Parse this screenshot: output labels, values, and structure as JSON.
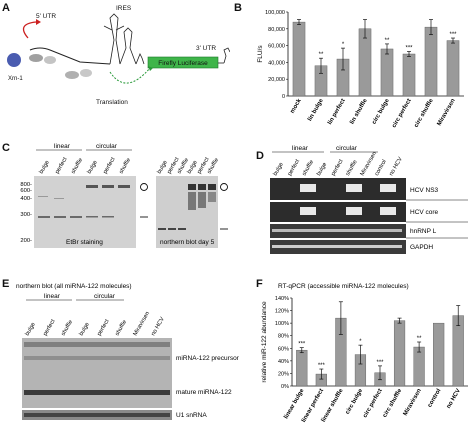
{
  "panels": {
    "A": {
      "letter": "A",
      "ires": "IRES",
      "utr5": "5' UTR",
      "utr3": "3' UTR",
      "xrn1": "Xrn-1",
      "luciferase": "Firefly Luciferase",
      "translation": "Translation"
    },
    "B": {
      "letter": "B",
      "chart_data": {
        "type": "bar",
        "categories": [
          "mock",
          "lin bulge",
          "lin perfect",
          "lin shuffle",
          "circ bulge",
          "circ perfect",
          "circ shuffle",
          "Miravirsen"
        ],
        "values": [
          88000,
          36000,
          44000,
          80000,
          56000,
          50000,
          82000,
          66000
        ],
        "errors": [
          3000,
          9000,
          13000,
          11000,
          6000,
          3000,
          9000,
          3000
        ],
        "significance": [
          "",
          "**",
          "*",
          "",
          "**",
          "***",
          "",
          "***"
        ],
        "ylabel": "FLU/s",
        "ylim": [
          0,
          100000
        ],
        "yticks": [
          "0",
          "20,000",
          "40,000",
          "60,000",
          "80,000",
          "100,000"
        ],
        "color": "#9a9a9a"
      }
    },
    "C": {
      "letter": "C",
      "linear": "linear",
      "circular": "circular",
      "lanes": [
        "bulge",
        "perfect",
        "shuffle",
        "bulge",
        "perfect",
        "shuffle"
      ],
      "lanes_right": [
        "bulge",
        "perfect",
        "shuffle",
        "bulge",
        "perfect",
        "shuffle"
      ],
      "size_markers": [
        "800-",
        "600-",
        "400-",
        "300-",
        "200-"
      ],
      "left_caption": "EtBr staining",
      "right_caption": "northern blot day 5",
      "circle_marker": "O",
      "line_marker": "–"
    },
    "D": {
      "letter": "D",
      "linear": "linear",
      "circular": "circular",
      "lanes": [
        "bulge",
        "perfect",
        "shuffle",
        "bulge",
        "perfect",
        "shuffle",
        "Miravirsen",
        "control",
        "no HCV"
      ],
      "bands": [
        "HCV NS3",
        "HCV core",
        "hnRNP L",
        "GAPDH"
      ]
    },
    "E": {
      "letter": "E",
      "title": "northern blot (all miRNA-122 molecules)",
      "linear": "linear",
      "circular": "circular",
      "lanes": [
        "bulge",
        "perfect",
        "shuffle",
        "bulge",
        "perfect",
        "shuffle",
        "Miravirsen",
        "no HCV"
      ],
      "precursor": "miRNA-122 precursor",
      "mature": "mature miRNA-122",
      "u1": "U1 snRNA"
    },
    "F": {
      "letter": "F",
      "title": "RT-qPCR (accessible miRNA-122 molecules)",
      "chart_data": {
        "type": "bar",
        "categories": [
          "linear bulge",
          "linear perfect",
          "linear shuffle",
          "circ bulge",
          "circ perfect",
          "circ shuffle",
          "Miravirsen",
          "control",
          "no HCV"
        ],
        "values": [
          57,
          19,
          108,
          50,
          21,
          104,
          62,
          100,
          112
        ],
        "errors": [
          4,
          8,
          26,
          15,
          11,
          4,
          8,
          0,
          16
        ],
        "significance": [
          "***",
          "***",
          "",
          "*",
          "***",
          "",
          "**",
          "",
          ""
        ],
        "ylabel": "relative miR-122 abundance",
        "ylim": [
          0,
          140
        ],
        "yticks": [
          "0%",
          "20%",
          "40%",
          "60%",
          "80%",
          "100%",
          "120%",
          "140%"
        ],
        "color": "#9a9a9a"
      }
    }
  }
}
